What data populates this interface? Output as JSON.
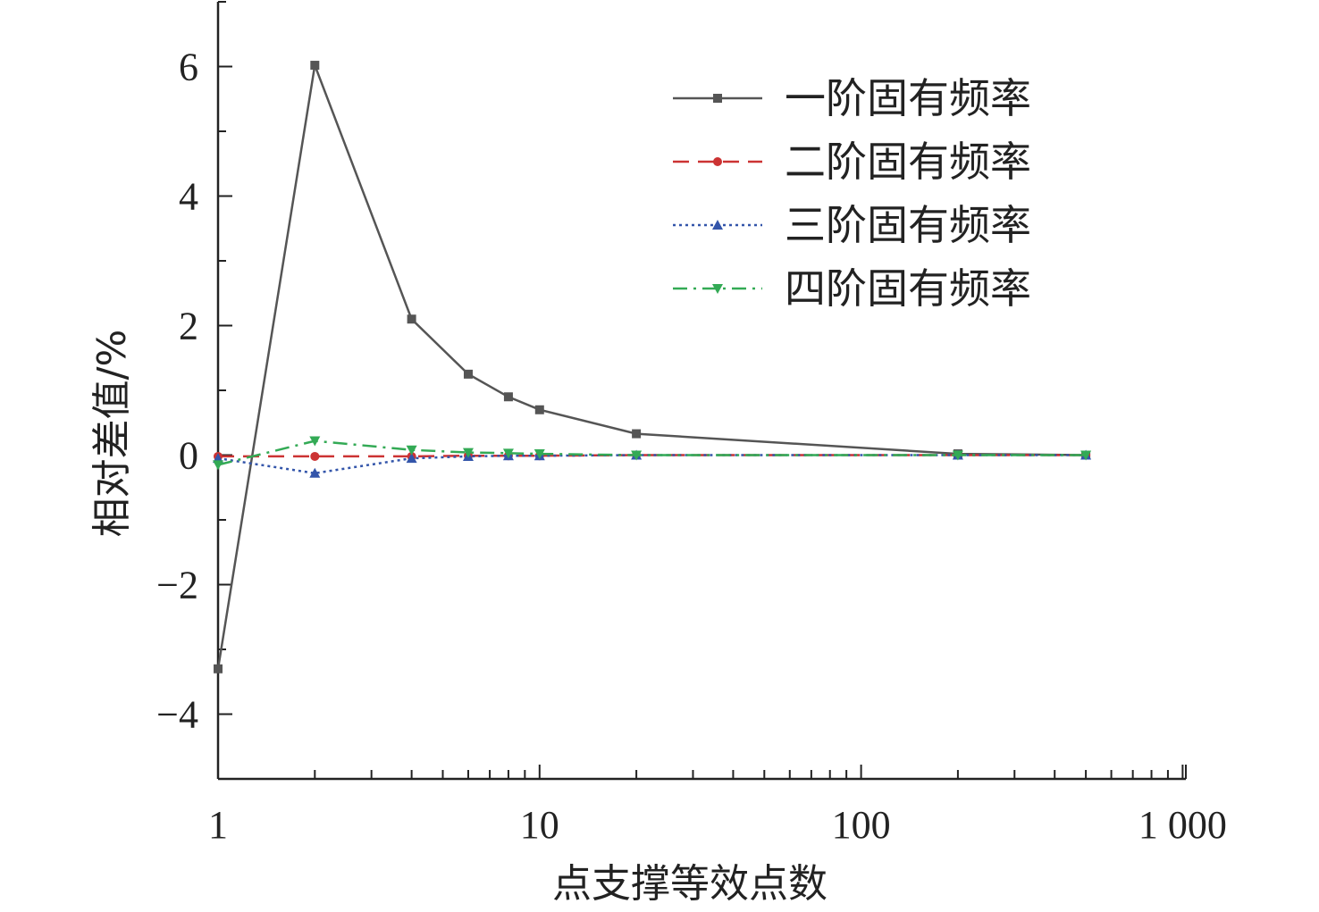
{
  "chart_data": {
    "type": "line",
    "xlabel": "点支撑等效点数",
    "ylabel": "相对差值/%",
    "xscale": "log",
    "xlim": [
      1,
      1000
    ],
    "ylim": [
      -5,
      7
    ],
    "xticks": [
      1,
      10,
      100,
      1000
    ],
    "xtick_labels": [
      "1",
      "10",
      "100",
      "1 000"
    ],
    "yticks": [
      -4,
      -2,
      0,
      2,
      4,
      6
    ],
    "ytick_labels": [
      "−4",
      "−2",
      "0",
      "2",
      "4",
      "6"
    ],
    "grid": false,
    "legend_position": "top-right",
    "x": [
      1,
      2,
      4,
      6,
      8,
      10,
      20,
      200,
      500
    ],
    "series": [
      {
        "name": "一阶固有频率",
        "color": "#555555",
        "dash": "solid",
        "marker": "square",
        "values": [
          -3.3,
          6.02,
          2.1,
          1.25,
          0.9,
          0.7,
          0.33,
          0.02,
          0.0
        ]
      },
      {
        "name": "二阶固有频率",
        "color": "#cc3333",
        "dash": "dashed",
        "marker": "circle",
        "values": [
          -0.02,
          -0.02,
          -0.02,
          -0.01,
          -0.01,
          -0.01,
          0.0,
          0.0,
          0.0
        ]
      },
      {
        "name": "三阶固有频率",
        "color": "#3355aa",
        "dash": "dotted",
        "marker": "triangle-up",
        "values": [
          -0.05,
          -0.28,
          -0.05,
          -0.02,
          -0.01,
          -0.01,
          0.0,
          0.0,
          0.0
        ]
      },
      {
        "name": "四阶固有频率",
        "color": "#33aa55",
        "dash": "dashdot",
        "marker": "triangle-down",
        "values": [
          -0.15,
          0.22,
          0.08,
          0.04,
          0.03,
          0.02,
          0.0,
          0.0,
          0.0
        ]
      }
    ]
  }
}
